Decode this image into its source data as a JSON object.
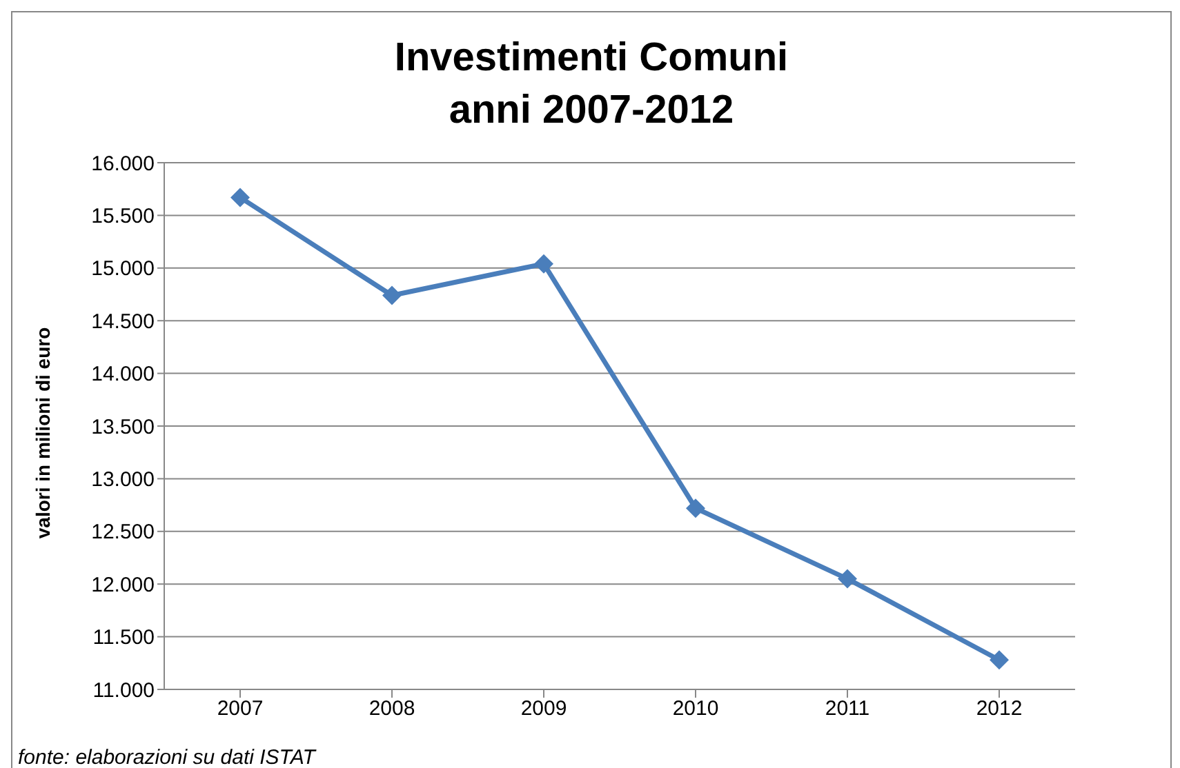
{
  "chart_data": {
    "type": "line",
    "title": "Investimenti Comuni\nanni 2007-2012",
    "ylabel": "valori in milioni di euro",
    "categories": [
      "2007",
      "2008",
      "2009",
      "2010",
      "2011",
      "2012"
    ],
    "series": [
      {
        "color": "#4a7ebb",
        "values": [
          15670,
          14740,
          15040,
          12720,
          12050,
          11280
        ]
      }
    ],
    "ylim": [
      11000,
      16000
    ],
    "yticks": [
      {
        "value": 11000,
        "label": "11.000"
      },
      {
        "value": 11500,
        "label": "11.500"
      },
      {
        "value": 12000,
        "label": "12.000"
      },
      {
        "value": 12500,
        "label": "12.500"
      },
      {
        "value": 13000,
        "label": "13.000"
      },
      {
        "value": 13500,
        "label": "13.500"
      },
      {
        "value": 14000,
        "label": "14.000"
      },
      {
        "value": 14500,
        "label": "14.500"
      },
      {
        "value": 15000,
        "label": "15.000"
      },
      {
        "value": 15500,
        "label": "15.500"
      },
      {
        "value": 16000,
        "label": "16.000"
      }
    ],
    "grid": "y",
    "legend": false,
    "marker": "diamond",
    "line_style": "solid",
    "annotations": [
      "fonte: elaborazioni su dati ISTAT"
    ]
  }
}
